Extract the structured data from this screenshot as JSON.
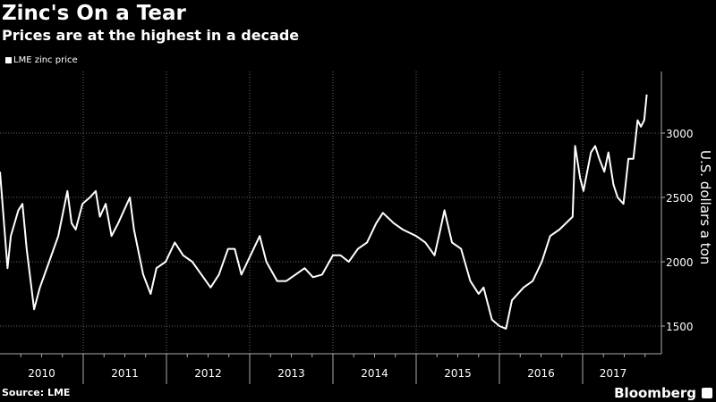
{
  "header": {
    "title": "Zinc's On a Tear",
    "subtitle": "Prices are at the highest in a decade"
  },
  "footer": {
    "source": "Source: LME",
    "brand": "Bloomberg"
  },
  "colors": {
    "background": "#000000",
    "line": "#ffffff",
    "grid": "#666666"
  },
  "chart_data": {
    "type": "line",
    "title": "Zinc's On a Tear",
    "subtitle": "Prices are at the highest in a decade",
    "ylabel": "U.S. dollars a ton",
    "xlabel": "",
    "ylim": [
      1250,
      3450
    ],
    "xlim": [
      2010.0,
      2017.95
    ],
    "yticks": [
      1500,
      2000,
      2500,
      3000
    ],
    "xtick_labels": [
      "2010",
      "2011",
      "2012",
      "2013",
      "2014",
      "2015",
      "2016",
      "2017"
    ],
    "grid": true,
    "legend_position": "top-left",
    "y_axis_side": "right",
    "series": [
      {
        "name": "LME zinc price",
        "x": [
          2010.0,
          2010.09,
          2010.13,
          2010.22,
          2010.27,
          2010.32,
          2010.41,
          2010.48,
          2010.59,
          2010.7,
          2010.81,
          2010.86,
          2010.91,
          2010.99,
          2011.08,
          2011.15,
          2011.2,
          2011.27,
          2011.34,
          2011.42,
          2011.56,
          2011.61,
          2011.72,
          2011.81,
          2011.88,
          2011.99,
          2012.1,
          2012.2,
          2012.31,
          2012.42,
          2012.53,
          2012.63,
          2012.74,
          2012.82,
          2012.9,
          2013.01,
          2013.12,
          2013.2,
          2013.33,
          2013.44,
          2013.55,
          2013.66,
          2013.76,
          2013.87,
          2014.0,
          2014.09,
          2014.19,
          2014.3,
          2014.41,
          2014.52,
          2014.6,
          2014.73,
          2014.84,
          2015.0,
          2015.11,
          2015.22,
          2015.29,
          2015.34,
          2015.43,
          2015.54,
          2015.65,
          2015.75,
          2015.81,
          2015.91,
          2016.0,
          2016.08,
          2016.15,
          2016.29,
          2016.4,
          2016.51,
          2016.61,
          2016.72,
          2016.8,
          2016.88,
          2016.91,
          2016.97,
          2017.01,
          2017.1,
          2017.15,
          2017.2,
          2017.26,
          2017.31,
          2017.37,
          2017.42,
          2017.49,
          2017.55,
          2017.61,
          2017.66,
          2017.7,
          2017.74,
          2017.77
        ],
        "y": [
          2700,
          1950,
          2200,
          2400,
          2450,
          2100,
          1630,
          1800,
          2000,
          2200,
          2550,
          2300,
          2250,
          2450,
          2500,
          2550,
          2350,
          2450,
          2200,
          2300,
          2500,
          2250,
          1900,
          1750,
          1950,
          2000,
          2150,
          2050,
          2000,
          1900,
          1800,
          1900,
          2100,
          2100,
          1900,
          2050,
          2200,
          2000,
          1850,
          1850,
          1900,
          1950,
          1880,
          1900,
          2050,
          2050,
          2000,
          2100,
          2150,
          2300,
          2380,
          2300,
          2250,
          2200,
          2150,
          2050,
          2250,
          2400,
          2150,
          2100,
          1850,
          1750,
          1800,
          1550,
          1500,
          1480,
          1700,
          1800,
          1850,
          2000,
          2200,
          2250,
          2300,
          2350,
          2900,
          2650,
          2550,
          2850,
          2900,
          2800,
          2700,
          2850,
          2600,
          2500,
          2450,
          2800,
          2800,
          3100,
          3050,
          3100,
          3300
        ]
      }
    ]
  }
}
